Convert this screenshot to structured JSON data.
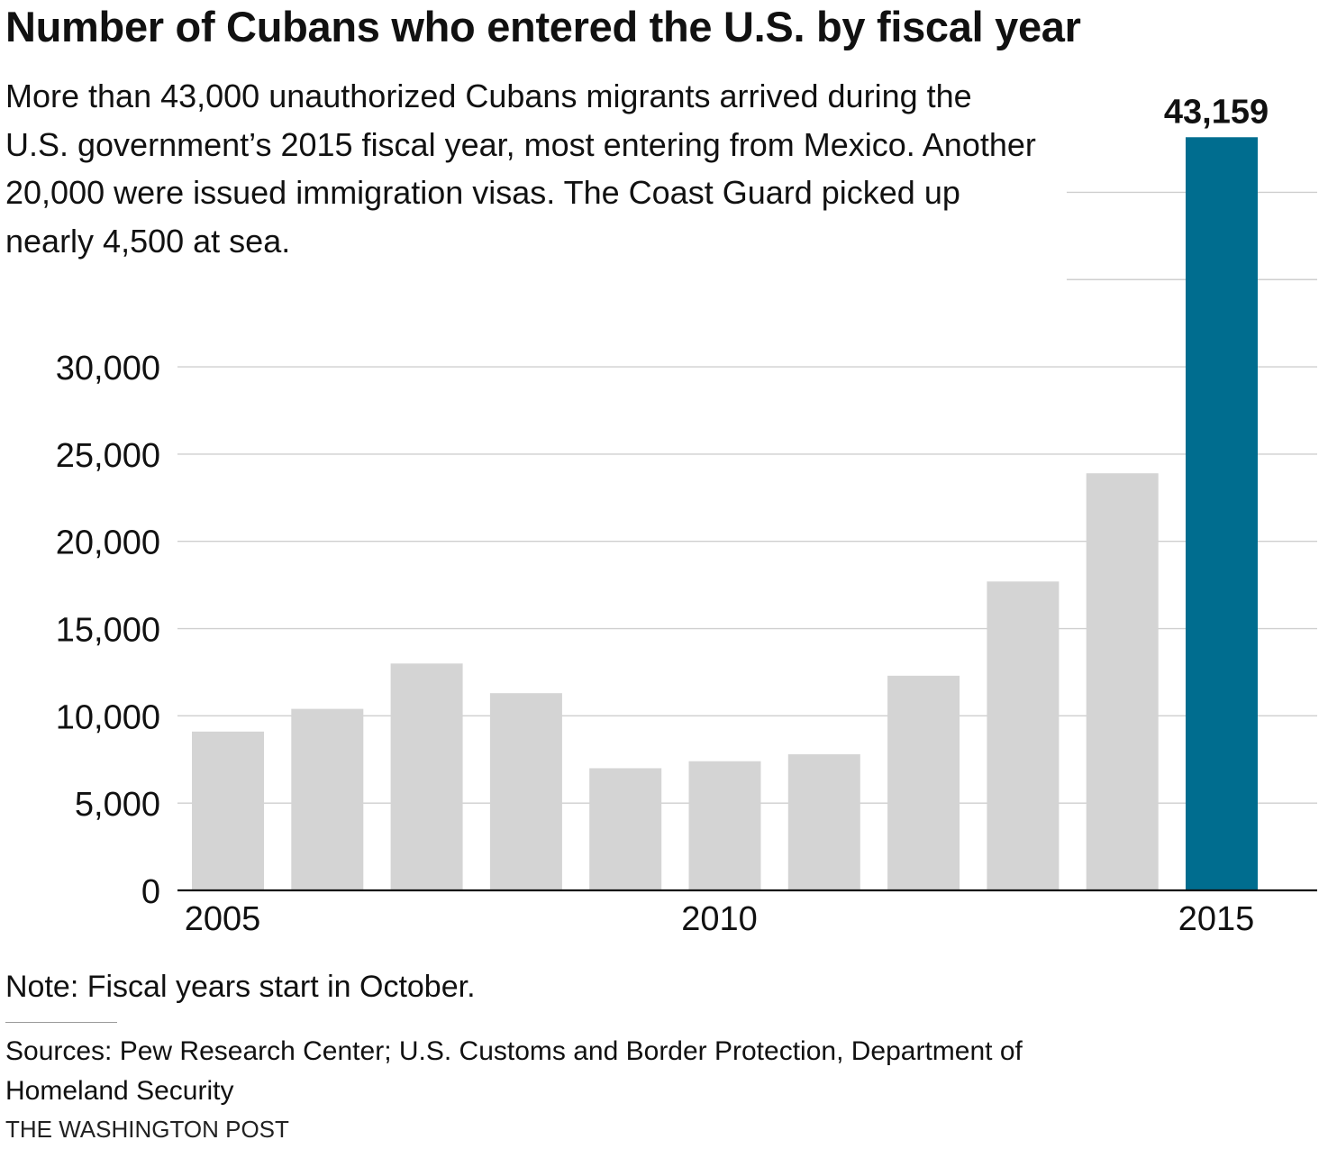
{
  "header": {
    "title": "Number of Cubans who entered the U.S. by fiscal year",
    "subtitle": "More than 43,000 unauthorized Cubans migrants arrived during the U.S. government’s 2015 fiscal year, most entering from Mexico. Another 20,000 were issued immigration visas. The Coast Guard picked up nearly 4,500 at sea."
  },
  "footer": {
    "note": "Note: Fiscal years start in October.",
    "sources": "Sources: Pew Research Center; U.S. Customs and Border Protection, Department of Homeland Security",
    "credit": "THE WASHINGTON POST"
  },
  "colors": {
    "bar": "#d4d4d4",
    "highlight": "#006d8f",
    "grid": "#cfcfcf",
    "axis": "#111111"
  },
  "chart_data": {
    "type": "bar",
    "title": "Number of Cubans who entered the U.S. by fiscal year",
    "xlabel": "",
    "ylabel": "",
    "categories": [
      2005,
      2006,
      2007,
      2008,
      2009,
      2010,
      2011,
      2012,
      2013,
      2014,
      2015
    ],
    "values": [
      9100,
      10400,
      13000,
      11300,
      7000,
      7400,
      7800,
      12300,
      17700,
      23900,
      43159
    ],
    "highlight_index": 10,
    "highlight_label": "43,159",
    "x_tick_labels": [
      {
        "year": 2005,
        "label": "2005"
      },
      {
        "year": 2010,
        "label": "2010"
      },
      {
        "year": 2015,
        "label": "2015"
      }
    ],
    "y_ticks": [
      {
        "value": 0,
        "label": "0"
      },
      {
        "value": 5000,
        "label": "5,000"
      },
      {
        "value": 10000,
        "label": "10,000"
      },
      {
        "value": 15000,
        "label": "15,000"
      },
      {
        "value": 20000,
        "label": "20,000"
      },
      {
        "value": 25000,
        "label": "25,000"
      },
      {
        "value": 30000,
        "label": "30,000"
      }
    ],
    "extra_gridlines": [
      35000,
      40000
    ],
    "ylim": [
      0,
      45000
    ],
    "grid": true,
    "legend": "none"
  }
}
